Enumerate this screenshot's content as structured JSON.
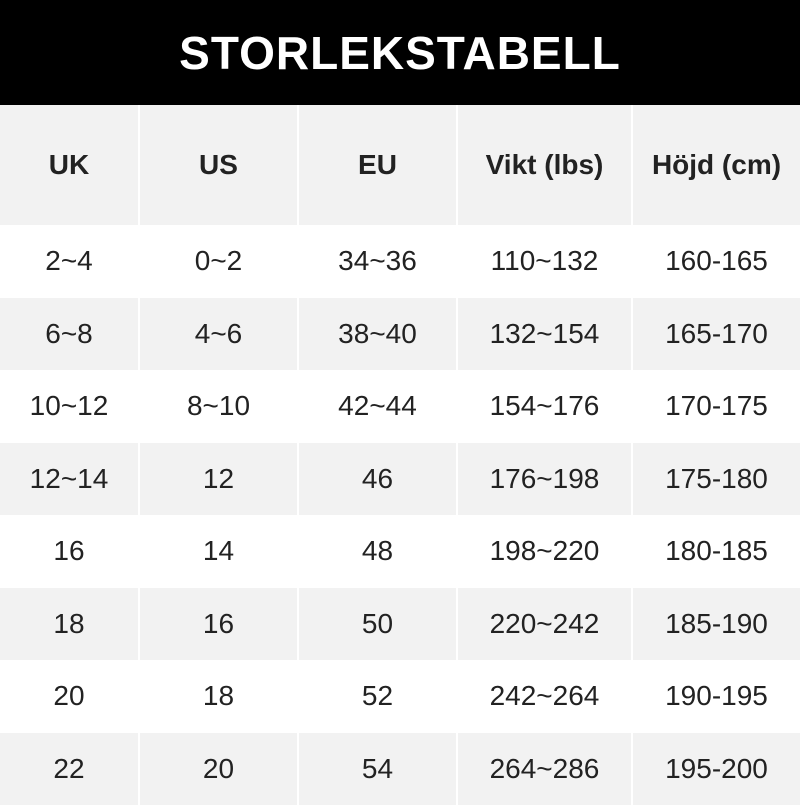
{
  "title": "STORLEKSTABELL",
  "headers": [
    "UK",
    "US",
    "EU",
    "Vikt (lbs)",
    "Höjd (cm)"
  ],
  "rows": [
    [
      "2~4",
      "0~2",
      "34~36",
      "110~132",
      "160-165"
    ],
    [
      "6~8",
      "4~6",
      "38~40",
      "132~154",
      "165-170"
    ],
    [
      "10~12",
      "8~10",
      "42~44",
      "154~176",
      "170-175"
    ],
    [
      "12~14",
      "12",
      "46",
      "176~198",
      "175-180"
    ],
    [
      "16",
      "14",
      "48",
      "198~220",
      "180-185"
    ],
    [
      "18",
      "16",
      "50",
      "220~242",
      "185-190"
    ],
    [
      "20",
      "18",
      "52",
      "242~264",
      "190-195"
    ],
    [
      "22",
      "20",
      "54",
      "264~286",
      "195-200"
    ]
  ],
  "colors": {
    "banner": "#000000",
    "stripe": "#f2f2f2",
    "text": "#222222"
  }
}
